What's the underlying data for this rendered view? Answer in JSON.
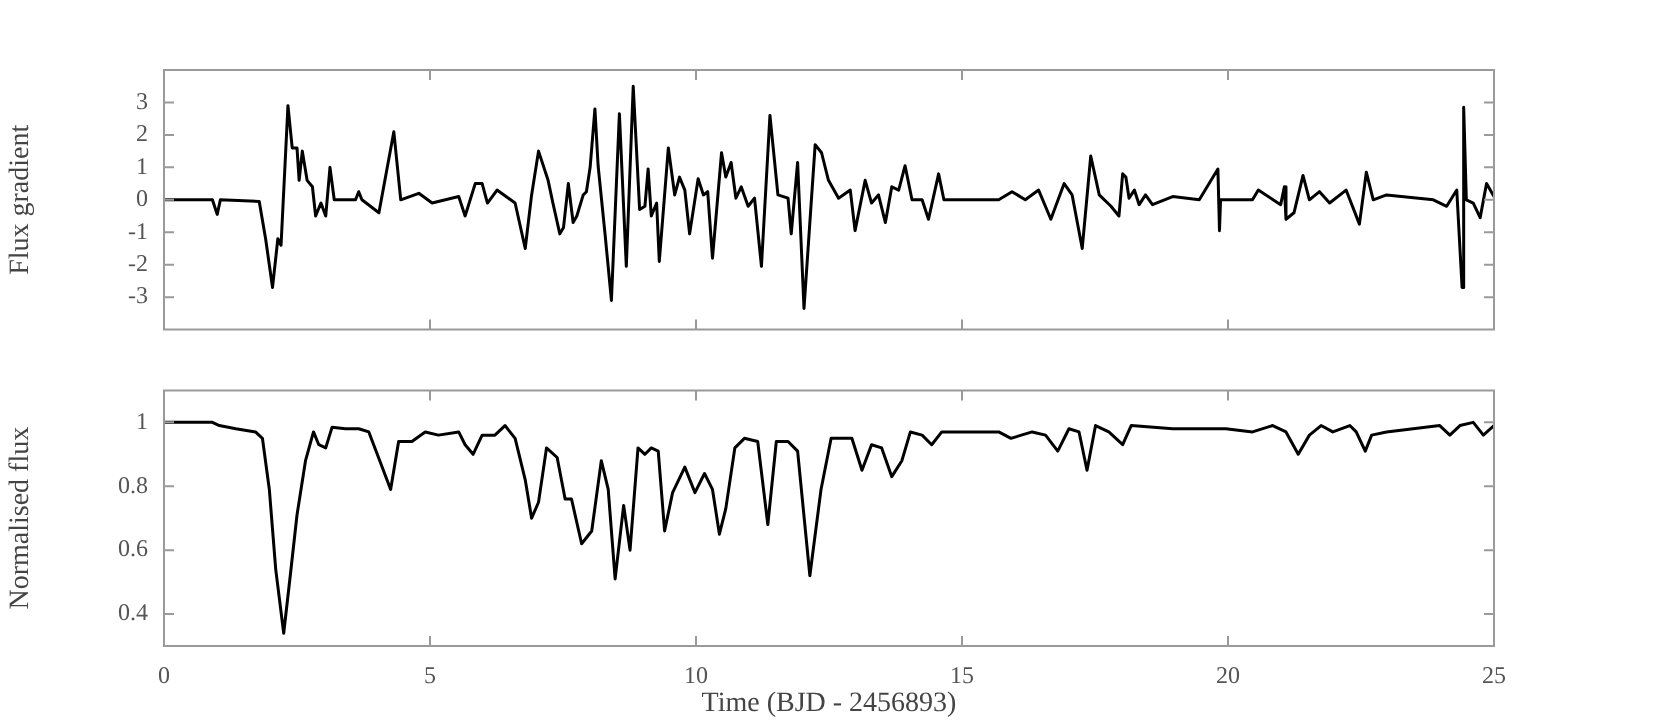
{
  "chart_data": [
    {
      "type": "line",
      "ylabel": "Flux gradient",
      "xlim": [
        0,
        25
      ],
      "xticks": [
        0,
        5,
        10,
        15,
        20,
        25
      ],
      "ylim": [
        -4,
        4
      ],
      "yticks": [
        -3,
        -2,
        -1,
        0,
        1,
        2,
        3
      ],
      "tick_labels": "y",
      "grid": false,
      "legend": false,
      "marker": "none",
      "series": [
        {
          "color": "#000000",
          "x": [
            0,
            0.91,
            1.0,
            1.06,
            1.79,
            1.91,
            2.04,
            2.14,
            2.2,
            2.33,
            2.41,
            2.5,
            2.54,
            2.6,
            2.69,
            2.79,
            2.85,
            2.95,
            3.04,
            3.12,
            3.2,
            3.6,
            3.66,
            3.72,
            4.04,
            4.32,
            4.45,
            4.79,
            5.04,
            5.54,
            5.66,
            5.85,
            5.98,
            6.08,
            6.26,
            6.6,
            6.79,
            6.91,
            7.04,
            7.22,
            7.31,
            7.44,
            7.51,
            7.6,
            7.69,
            7.76,
            7.88,
            7.94,
            8.01,
            8.1,
            8.16,
            8.29,
            8.41,
            8.56,
            8.69,
            8.82,
            8.94,
            9.04,
            9.1,
            9.16,
            9.26,
            9.31,
            9.48,
            9.6,
            9.69,
            9.79,
            9.88,
            10.04,
            10.14,
            10.22,
            10.31,
            10.48,
            10.56,
            10.66,
            10.75,
            10.85,
            10.98,
            11.1,
            11.23,
            11.39,
            11.54,
            11.73,
            11.79,
            11.91,
            12.03,
            12.24,
            12.36,
            12.49,
            12.68,
            12.9,
            12.99,
            13.18,
            13.3,
            13.43,
            13.56,
            13.68,
            13.81,
            13.93,
            14.06,
            14.25,
            14.37,
            14.56,
            14.66,
            15.69,
            15.94,
            16.19,
            16.44,
            16.67,
            16.92,
            17.07,
            17.26,
            17.42,
            17.58,
            17.8,
            17.95,
            18.02,
            18.08,
            18.14,
            18.24,
            18.33,
            18.45,
            18.58,
            18.96,
            19.46,
            19.81,
            19.84,
            19.86,
            20.46,
            20.57,
            20.99,
            21.06,
            21.09,
            21.24,
            21.41,
            21.53,
            21.72,
            21.91,
            22.22,
            22.47,
            22.6,
            22.73,
            22.98,
            23.86,
            24.11,
            24.3,
            24.4,
            24.43,
            24.48,
            24.61,
            24.74,
            24.86,
            25.0
          ],
          "values": [
            0,
            0,
            -0.45,
            0,
            -0.05,
            -1.2,
            -2.7,
            -1.2,
            -1.4,
            2.9,
            1.6,
            1.6,
            0.6,
            1.5,
            0.6,
            0.4,
            -0.5,
            -0.1,
            -0.5,
            1.0,
            0,
            0,
            0.25,
            0,
            -0.4,
            2.1,
            0,
            0.2,
            -0.1,
            0.1,
            -0.5,
            0.5,
            0.5,
            -0.1,
            0.3,
            -0.1,
            -1.5,
            0.15,
            1.5,
            0.6,
            -0.1,
            -1.05,
            -0.85,
            0.5,
            -0.7,
            -0.5,
            0.15,
            0.25,
            1.0,
            2.8,
            1.05,
            -1.05,
            -3.1,
            2.65,
            -2.05,
            3.5,
            -0.3,
            -0.2,
            0.95,
            -0.5,
            -0.1,
            -1.9,
            1.6,
            0.15,
            0.7,
            0.3,
            -1.05,
            0.65,
            0.15,
            0.25,
            -1.8,
            1.45,
            0.7,
            1.15,
            0.05,
            0.4,
            -0.2,
            0.05,
            -2.05,
            2.6,
            0.15,
            0.05,
            -1.05,
            1.15,
            -3.35,
            1.7,
            1.45,
            0.6,
            0.05,
            0.3,
            -0.95,
            0.6,
            -0.1,
            0.15,
            -0.7,
            0.4,
            0.3,
            1.05,
            0,
            0,
            -0.6,
            0.8,
            0,
            0,
            0.25,
            0,
            0.3,
            -0.6,
            0.5,
            0.15,
            -1.5,
            1.35,
            0.15,
            -0.2,
            -0.5,
            0.8,
            0.7,
            0.05,
            0.3,
            -0.15,
            0.15,
            -0.15,
            0.1,
            0,
            0.95,
            -0.95,
            0,
            0,
            0.3,
            -0.15,
            0.4,
            -0.6,
            -0.4,
            0.75,
            0,
            0.25,
            -0.1,
            0.3,
            -0.75,
            0.85,
            0,
            0.15,
            0,
            -0.2,
            0.3,
            -2.7,
            2.85,
            0,
            -0.1,
            -0.55,
            0.5,
            0.1
          ]
        }
      ]
    },
    {
      "type": "line",
      "ylabel": "Normalised flux",
      "xlabel": "Time (BJD - 2456893)",
      "xlim": [
        0,
        25
      ],
      "xticks": [
        0,
        5,
        10,
        15,
        20,
        25
      ],
      "ylim": [
        0.3,
        1.1
      ],
      "yticks": [
        0.4,
        0.6,
        0.8,
        1
      ],
      "grid": false,
      "legend": false,
      "marker": "none",
      "series": [
        {
          "color": "#000000",
          "x": [
            0,
            0.91,
            1.04,
            1.35,
            1.72,
            1.85,
            1.98,
            2.1,
            2.25,
            2.38,
            2.5,
            2.66,
            2.81,
            2.91,
            3.04,
            3.16,
            3.41,
            3.66,
            3.85,
            4.1,
            4.26,
            4.41,
            4.66,
            4.91,
            5.16,
            5.54,
            5.66,
            5.81,
            5.98,
            6.22,
            6.41,
            6.6,
            6.79,
            6.91,
            7.04,
            7.19,
            7.39,
            7.54,
            7.66,
            7.85,
            8.04,
            8.22,
            8.35,
            8.48,
            8.64,
            8.76,
            8.91,
            9.04,
            9.16,
            9.29,
            9.41,
            9.56,
            9.79,
            9.98,
            10.16,
            10.31,
            10.44,
            10.56,
            10.73,
            10.91,
            11.16,
            11.35,
            11.51,
            11.73,
            11.91,
            12.14,
            12.35,
            12.54,
            12.68,
            12.93,
            13.12,
            13.3,
            13.49,
            13.68,
            13.87,
            14.03,
            14.25,
            14.43,
            14.62,
            15.19,
            15.69,
            15.92,
            16.32,
            16.57,
            16.8,
            17.01,
            17.2,
            17.35,
            17.51,
            17.76,
            18.02,
            18.18,
            18.96,
            19.71,
            19.96,
            20.46,
            20.84,
            21.09,
            21.32,
            21.53,
            21.75,
            21.97,
            22.29,
            22.41,
            22.58,
            22.7,
            22.98,
            23.48,
            23.98,
            24.17,
            24.36,
            24.61,
            24.8,
            25.0
          ],
          "values": [
            1.0,
            1.0,
            0.99,
            0.98,
            0.97,
            0.95,
            0.79,
            0.54,
            0.34,
            0.53,
            0.71,
            0.88,
            0.97,
            0.93,
            0.92,
            0.985,
            0.98,
            0.98,
            0.97,
            0.86,
            0.79,
            0.94,
            0.94,
            0.97,
            0.96,
            0.97,
            0.93,
            0.9,
            0.96,
            0.96,
            0.99,
            0.95,
            0.82,
            0.7,
            0.75,
            0.92,
            0.89,
            0.76,
            0.76,
            0.62,
            0.66,
            0.88,
            0.79,
            0.51,
            0.74,
            0.6,
            0.92,
            0.9,
            0.92,
            0.91,
            0.66,
            0.78,
            0.86,
            0.78,
            0.84,
            0.79,
            0.65,
            0.73,
            0.92,
            0.95,
            0.94,
            0.68,
            0.94,
            0.94,
            0.91,
            0.52,
            0.79,
            0.95,
            0.95,
            0.95,
            0.85,
            0.93,
            0.92,
            0.83,
            0.88,
            0.97,
            0.96,
            0.93,
            0.97,
            0.97,
            0.97,
            0.95,
            0.97,
            0.96,
            0.91,
            0.98,
            0.97,
            0.85,
            0.99,
            0.97,
            0.93,
            0.99,
            0.98,
            0.98,
            0.98,
            0.97,
            0.99,
            0.97,
            0.9,
            0.96,
            0.99,
            0.97,
            0.99,
            0.97,
            0.91,
            0.96,
            0.97,
            0.98,
            0.99,
            0.96,
            0.99,
            1.0,
            0.96,
            0.99
          ]
        }
      ]
    }
  ]
}
